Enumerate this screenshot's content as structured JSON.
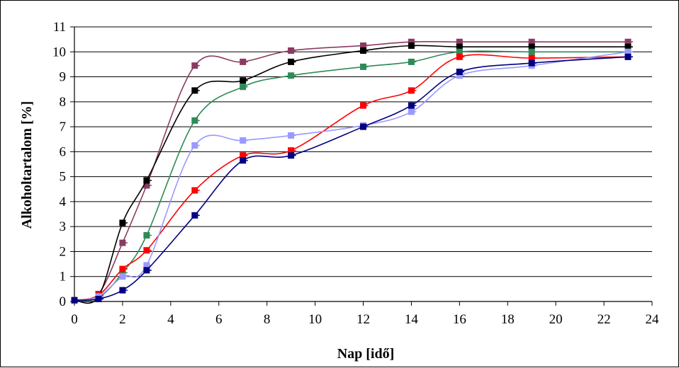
{
  "chart_data": {
    "type": "line",
    "title": "",
    "xlabel": "Nap [idő]",
    "ylabel": "Alkoholtartalom [%]",
    "xlim": [
      0,
      24
    ],
    "ylim": [
      0,
      11
    ],
    "x_ticks": [
      0,
      2,
      4,
      6,
      8,
      10,
      12,
      14,
      16,
      18,
      20,
      22,
      24
    ],
    "y_ticks": [
      0,
      1,
      2,
      3,
      4,
      5,
      6,
      7,
      8,
      9,
      10,
      11
    ],
    "grid": {
      "horizontal": true,
      "vertical": false
    },
    "legend": "none",
    "x": [
      0,
      1,
      2,
      3,
      5,
      7,
      9,
      12,
      14,
      16,
      19,
      23
    ],
    "series": [
      {
        "color": "#8b3a62",
        "values": [
          0.05,
          0.3,
          2.35,
          4.65,
          9.45,
          9.6,
          10.05,
          10.25,
          10.4,
          10.4,
          10.4,
          10.4
        ]
      },
      {
        "color": "#000000",
        "values": [
          0.05,
          0.2,
          3.15,
          4.85,
          8.45,
          8.85,
          9.6,
          10.05,
          10.25,
          10.2,
          10.2,
          10.2
        ]
      },
      {
        "color": "#2e8b57",
        "values": [
          0.05,
          0.15,
          1.15,
          2.65,
          7.25,
          8.6,
          9.05,
          9.4,
          9.6,
          10.0,
          10.0,
          10.0
        ]
      },
      {
        "color": "#ff0000",
        "values": [
          0.05,
          0.25,
          1.3,
          2.05,
          4.45,
          5.85,
          6.05,
          7.85,
          8.45,
          9.8,
          9.75,
          9.8
        ]
      },
      {
        "color": "#9999ff",
        "values": [
          0.05,
          0.2,
          1.0,
          1.45,
          6.25,
          6.45,
          6.65,
          7.05,
          7.6,
          9.05,
          9.45,
          10.0
        ]
      },
      {
        "color": "#000080",
        "values": [
          0.05,
          0.1,
          0.45,
          1.25,
          3.45,
          5.65,
          5.85,
          7.0,
          7.85,
          9.2,
          9.55,
          9.8
        ]
      }
    ]
  }
}
